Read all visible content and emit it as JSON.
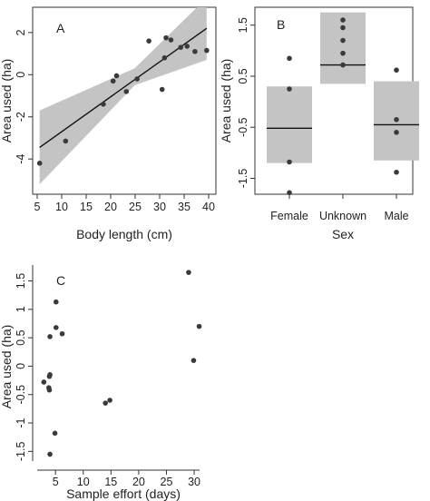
{
  "chart_data": [
    {
      "panel": "A",
      "type": "scatter",
      "xlabel": "Body length (cm)",
      "ylabel": "Area used (ha)",
      "xlim": [
        5,
        40
      ],
      "ylim": [
        -5.5,
        3.2
      ],
      "xticks": [
        5,
        10,
        15,
        20,
        25,
        30,
        35,
        40
      ],
      "yticks": [
        -4,
        -2,
        0,
        2
      ],
      "points": [
        {
          "x": 5.5,
          "y": -4.2
        },
        {
          "x": 10.8,
          "y": -3.15
        },
        {
          "x": 18.5,
          "y": -1.4
        },
        {
          "x": 20.5,
          "y": -0.3
        },
        {
          "x": 21.2,
          "y": -0.05
        },
        {
          "x": 23.2,
          "y": -0.8
        },
        {
          "x": 25.4,
          "y": -0.2
        },
        {
          "x": 27.8,
          "y": 1.6
        },
        {
          "x": 30.5,
          "y": -0.7
        },
        {
          "x": 31.0,
          "y": 0.8
        },
        {
          "x": 31.3,
          "y": 1.75
        },
        {
          "x": 32.3,
          "y": 1.65
        },
        {
          "x": 34.3,
          "y": 1.3
        },
        {
          "x": 35.6,
          "y": 1.35
        },
        {
          "x": 37.2,
          "y": 1.1
        },
        {
          "x": 39.6,
          "y": 1.15
        }
      ],
      "fit": {
        "x": [
          5.5,
          39.6
        ],
        "y": [
          -3.45,
          2.2
        ]
      },
      "band_lower": {
        "x": [
          5.5,
          24.9,
          39.6
        ],
        "y": [
          -5.2,
          -0.5,
          0.7
        ]
      },
      "band_upper": {
        "x": [
          5.5,
          24.9,
          39.6
        ],
        "y": [
          -1.7,
          0.3,
          3.65
        ]
      }
    },
    {
      "panel": "B",
      "type": "box",
      "xlabel": "Sex",
      "ylabel": "Area used (ha)",
      "ylim": [
        -1.9,
        1.85
      ],
      "yticks": [
        -1.5,
        -0.5,
        0.5,
        1.5
      ],
      "categories": [
        "Female",
        "Unknown",
        "Male"
      ],
      "boxes": [
        {
          "lower": -1.2,
          "upper": 0.3,
          "median": -0.52,
          "points": [
            -1.78,
            -1.18,
            0.25,
            0.85
          ]
        },
        {
          "lower": 0.35,
          "upper": 1.75,
          "median": 0.72,
          "points": [
            0.95,
            1.2,
            1.45,
            1.6,
            0.72,
            0.72
          ]
        },
        {
          "lower": -1.15,
          "upper": 0.4,
          "median": -0.45,
          "points": [
            -1.38,
            -0.6,
            -0.35,
            0.62
          ]
        }
      ]
    },
    {
      "panel": "C",
      "type": "scatter",
      "xlabel": "Sample effort (days)",
      "ylabel": "Area used (ha)",
      "xlim": [
        1.7,
        31.3
      ],
      "ylim": [
        -1.75,
        1.78
      ],
      "xticks": [
        5,
        10,
        15,
        20,
        25,
        30
      ],
      "yticks": [
        -1.5,
        -1,
        -0.5,
        0,
        0.5,
        1,
        1.5
      ],
      "points": [
        {
          "x": 2.9,
          "y": -0.28
        },
        {
          "x": 3.8,
          "y": -0.38
        },
        {
          "x": 3.9,
          "y": -0.42
        },
        {
          "x": 3.9,
          "y": -0.18
        },
        {
          "x": 4.0,
          "y": -0.15
        },
        {
          "x": 4.0,
          "y": 0.52
        },
        {
          "x": 4.0,
          "y": -1.55
        },
        {
          "x": 4.9,
          "y": -1.18
        },
        {
          "x": 5.1,
          "y": 1.13
        },
        {
          "x": 5.1,
          "y": 0.68
        },
        {
          "x": 6.2,
          "y": 0.57
        },
        {
          "x": 14.0,
          "y": -0.65
        },
        {
          "x": 14.8,
          "y": -0.6
        },
        {
          "x": 29.0,
          "y": 1.65
        },
        {
          "x": 29.9,
          "y": 0.1
        },
        {
          "x": 30.9,
          "y": 0.7
        }
      ]
    }
  ],
  "panels": {
    "a": {
      "letter": "A",
      "xlabel": "Body length (cm)",
      "ylabel": "Area used (ha)"
    },
    "b": {
      "letter": "B",
      "xlabel": "Sex",
      "ylabel": "Area used (ha)"
    },
    "c": {
      "letter": "C",
      "xlabel": "Sample effort (days)",
      "ylabel": "Area used (ha)"
    }
  },
  "colors": {
    "band": "#c4c4c4",
    "point": "#3a3a3a",
    "line": "#111111"
  }
}
